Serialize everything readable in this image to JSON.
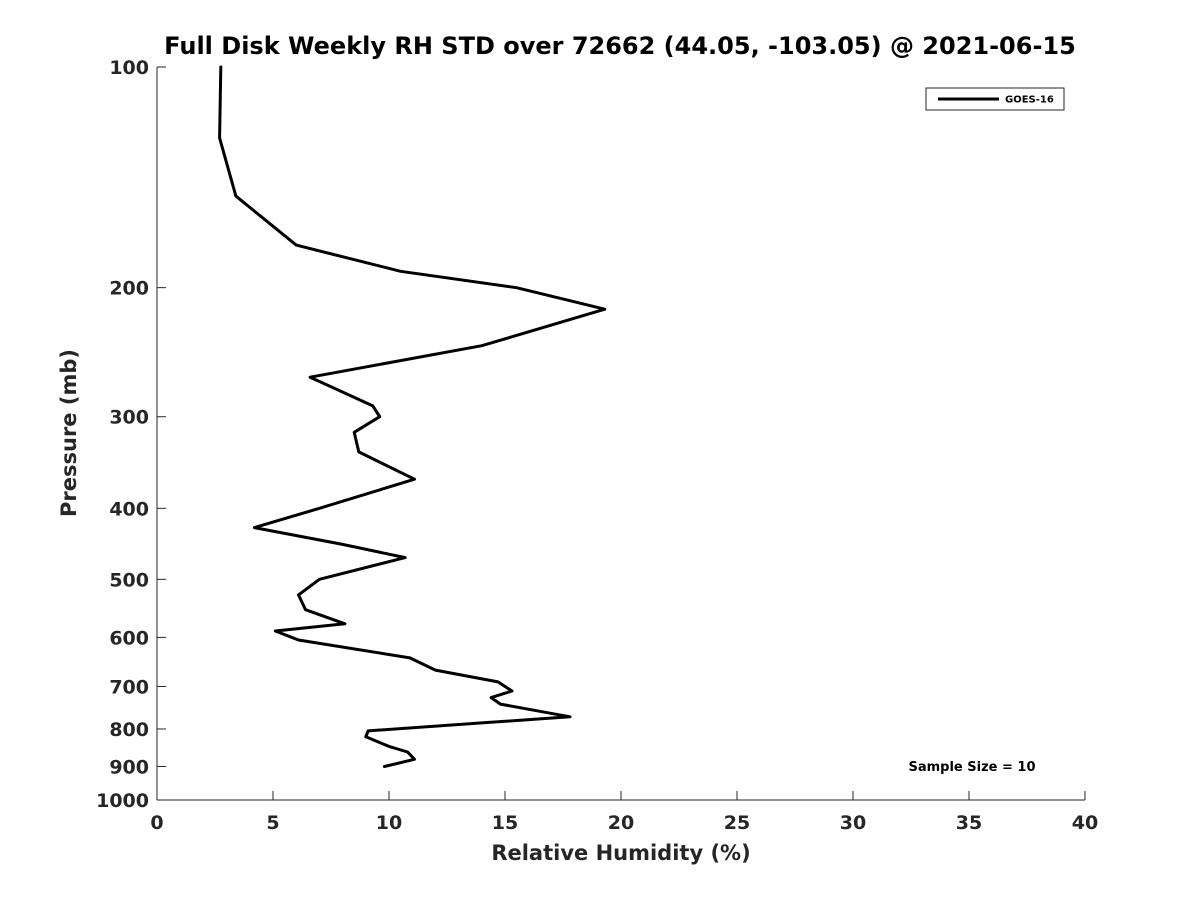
{
  "chart_data": {
    "type": "line",
    "title": "Full Disk Weekly RH STD over 72662 (44.05, -103.05) @ 2021-06-15",
    "xlabel": "Relative Humidity (%)",
    "ylabel": "Pressure (mb)",
    "xlim": [
      0,
      40
    ],
    "ylim": [
      100,
      1000
    ],
    "yscale": "log",
    "y_reversed": true,
    "xticks": [
      0,
      5,
      10,
      15,
      20,
      25,
      30,
      35,
      40
    ],
    "yticks": [
      100,
      200,
      300,
      400,
      500,
      600,
      700,
      800,
      900,
      1000
    ],
    "grid": false,
    "legend": "top-right",
    "annotation": "Sample Size = 10",
    "series": [
      {
        "name": "GOES-16",
        "color": "#000000",
        "points": [
          [
            2.75,
            100
          ],
          [
            2.7,
            125
          ],
          [
            3.4,
            150
          ],
          [
            6.0,
            175
          ],
          [
            10.5,
            190
          ],
          [
            15.5,
            200
          ],
          [
            19.3,
            214
          ],
          [
            14.0,
            240
          ],
          [
            6.6,
            265
          ],
          [
            9.3,
            290
          ],
          [
            9.6,
            300
          ],
          [
            8.5,
            315
          ],
          [
            8.7,
            335
          ],
          [
            11.1,
            365
          ],
          [
            7.0,
            400
          ],
          [
            4.2,
            425
          ],
          [
            8.0,
            448
          ],
          [
            10.7,
            467
          ],
          [
            7.0,
            500
          ],
          [
            6.1,
            525
          ],
          [
            6.4,
            550
          ],
          [
            8.1,
            575
          ],
          [
            5.1,
            588
          ],
          [
            6.1,
            605
          ],
          [
            10.9,
            640
          ],
          [
            12.0,
            665
          ],
          [
            14.7,
            690
          ],
          [
            15.3,
            710
          ],
          [
            14.4,
            725
          ],
          [
            14.8,
            740
          ],
          [
            17.8,
            770
          ],
          [
            14.0,
            785
          ],
          [
            9.1,
            805
          ],
          [
            9.0,
            820
          ],
          [
            10.0,
            845
          ],
          [
            10.8,
            860
          ],
          [
            11.1,
            880
          ],
          [
            9.8,
            900
          ]
        ]
      }
    ]
  }
}
